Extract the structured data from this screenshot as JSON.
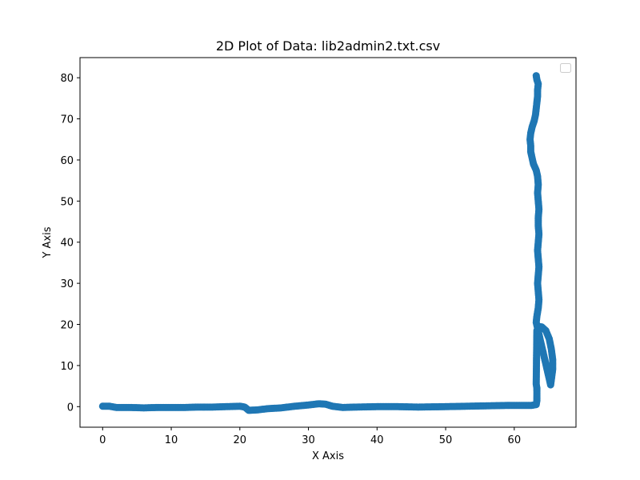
{
  "chart_data": {
    "type": "scatter",
    "title": "2D Plot of Data: lib2admin2.txt.csv",
    "xlabel": "X Axis",
    "ylabel": "Y Axis",
    "xlim": [
      -3.3,
      69.0
    ],
    "ylim": [
      -5.0,
      84.9
    ],
    "xticks": [
      0,
      10,
      20,
      30,
      40,
      50,
      60
    ],
    "yticks": [
      0,
      10,
      20,
      30,
      40,
      50,
      60,
      70,
      80
    ],
    "grid": false,
    "legend": {
      "placement": "upper right",
      "entries": []
    },
    "series": [
      {
        "color": "#1f77b4",
        "marker": "circle",
        "points": [
          [
            0,
            0.1
          ],
          [
            1,
            0.1
          ],
          [
            2,
            -0.2
          ],
          [
            4,
            -0.2
          ],
          [
            6,
            -0.3
          ],
          [
            8,
            -0.2
          ],
          [
            10,
            -0.2
          ],
          [
            12,
            -0.2
          ],
          [
            14,
            -0.1
          ],
          [
            16,
            -0.1
          ],
          [
            18,
            0.0
          ],
          [
            20,
            0.1
          ],
          [
            20.7,
            -0.1
          ],
          [
            21.3,
            -0.9
          ],
          [
            22.5,
            -0.8
          ],
          [
            24,
            -0.5
          ],
          [
            26,
            -0.3
          ],
          [
            28,
            0.1
          ],
          [
            30,
            0.4
          ],
          [
            31.5,
            0.7
          ],
          [
            32.5,
            0.6
          ],
          [
            33.5,
            0.1
          ],
          [
            35,
            -0.2
          ],
          [
            37,
            -0.1
          ],
          [
            40,
            0.0
          ],
          [
            43,
            0.0
          ],
          [
            46,
            -0.1
          ],
          [
            50,
            0.0
          ],
          [
            53,
            0.1
          ],
          [
            56,
            0.2
          ],
          [
            59,
            0.3
          ],
          [
            61,
            0.3
          ],
          [
            62.5,
            0.3
          ],
          [
            63.2,
            0.5
          ],
          [
            63.3,
            1.5
          ],
          [
            63.3,
            3.0
          ],
          [
            63.3,
            4.5
          ],
          [
            63.2,
            5.5
          ],
          [
            63.3,
            18.5
          ],
          [
            63.6,
            19.5
          ],
          [
            64.0,
            19.4
          ],
          [
            64.6,
            18.5
          ],
          [
            65.1,
            16.5
          ],
          [
            65.4,
            14.0
          ],
          [
            65.6,
            11.5
          ],
          [
            65.6,
            9.0
          ],
          [
            65.4,
            6.5
          ],
          [
            65.3,
            5.3
          ],
          [
            63.2,
            20.5
          ],
          [
            63.3,
            22.0
          ],
          [
            63.5,
            24.0
          ],
          [
            63.6,
            26.0
          ],
          [
            63.5,
            28.0
          ],
          [
            63.4,
            30.0
          ],
          [
            63.5,
            32.0
          ],
          [
            63.6,
            34.0
          ],
          [
            63.5,
            36.0
          ],
          [
            63.4,
            38.0
          ],
          [
            63.5,
            40.0
          ],
          [
            63.6,
            42.0
          ],
          [
            63.5,
            44.0
          ],
          [
            63.5,
            46.0
          ],
          [
            63.6,
            48.0
          ],
          [
            63.5,
            50.0
          ],
          [
            63.4,
            52.0
          ],
          [
            63.5,
            54.0
          ],
          [
            63.4,
            56.0
          ],
          [
            63.2,
            57.5
          ],
          [
            62.8,
            59.0
          ],
          [
            62.6,
            60.5
          ],
          [
            62.4,
            62.0
          ],
          [
            62.4,
            63.5
          ],
          [
            62.3,
            65.0
          ],
          [
            62.4,
            66.5
          ],
          [
            62.6,
            68.0
          ],
          [
            62.9,
            69.5
          ],
          [
            63.1,
            71.0
          ],
          [
            63.2,
            72.5
          ],
          [
            63.3,
            74.0
          ],
          [
            63.4,
            75.5
          ],
          [
            63.4,
            77.0
          ],
          [
            63.5,
            78.5
          ],
          [
            63.3,
            79.5
          ],
          [
            63.2,
            80.5
          ]
        ]
      }
    ]
  }
}
